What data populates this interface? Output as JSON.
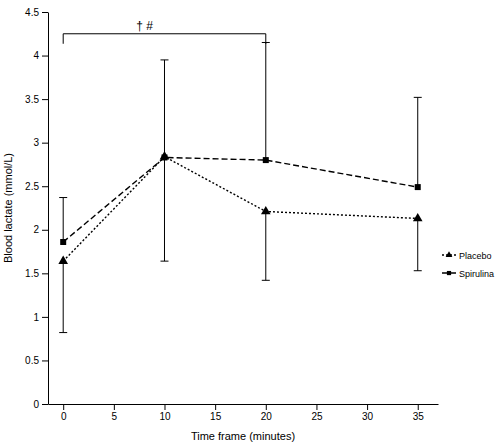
{
  "chart_data": {
    "type": "line",
    "x_label": "Time frame (minutes)",
    "y_label": "Blood lactate (mmol/L)",
    "x": [
      0,
      10,
      20,
      35
    ],
    "series": [
      {
        "name": "Placebo",
        "color": "#000000",
        "marker": "triangle",
        "line_style": "dotted",
        "values": [
          1.64,
          2.84,
          2.21,
          2.13
        ],
        "error": [
          0.82,
          1.2,
          0.79,
          0.6
        ]
      },
      {
        "name": "Spirulina",
        "color": "#000000",
        "marker": "square",
        "line_style": "dashed",
        "values": [
          1.86,
          2.83,
          2.8,
          2.49
        ],
        "error": [
          0.51,
          1.12,
          1.35,
          1.03
        ]
      }
    ],
    "xlim": [
      -1.5,
      37
    ],
    "xticks": [
      0,
      5,
      10,
      15,
      20,
      25,
      30,
      35
    ],
    "ylim": [
      0,
      4.5
    ],
    "yticks": [
      0,
      0.5,
      1,
      1.5,
      2,
      2.5,
      3,
      3.5,
      4,
      4.5
    ],
    "legend": "right",
    "annotations": [
      {
        "text": "† #",
        "x": [
          0,
          20
        ],
        "y": 4.25
      }
    ]
  }
}
